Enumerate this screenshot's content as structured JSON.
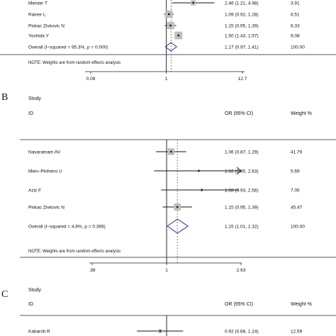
{
  "chart_data": [
    {
      "type": "forest",
      "panel": "",
      "header": {
        "study": "",
        "id": "",
        "or": "",
        "weight": ""
      },
      "studies": [
        {
          "label": "Meister T",
          "or": 2.46,
          "lo": 1.21,
          "hi": 4.98,
          "or_text": "2.46 (1.21, 4.98)",
          "weight": "3.91"
        },
        {
          "label": "Rainer L",
          "or": 1.09,
          "lo": 0.92,
          "hi": 1.28,
          "or_text": "1.09 (0.92, 1.28)",
          "weight": "8.51"
        },
        {
          "label": "Piskac Zivkovic N",
          "or": 1.15,
          "lo": 0.95,
          "hi": 1.39,
          "or_text": "1.15 (0.95, 1.39)",
          "weight": "8.33"
        },
        {
          "label": "Yoshida Y",
          "or": 1.5,
          "lo": 1.43,
          "hi": 1.57,
          "or_text": "1.50 (1.43, 1.57)",
          "weight": "9.08"
        }
      ],
      "overall": {
        "label": "Overall  (I–squared = 95.3%, p = 0.000)",
        "or": 1.17,
        "lo": 0.97,
        "hi": 1.41,
        "or_text": "1.17 (0.97, 1.41)",
        "weight": "100.00"
      },
      "note": "NOTE: Weights are from random effects analysis",
      "axis": {
        "ticks": [
          0.08,
          1,
          12.7
        ],
        "tick_labels": [
          "0.08",
          "1",
          "12.7"
        ],
        "scale": "log"
      }
    },
    {
      "type": "forest",
      "panel": "B",
      "header": {
        "study": "Study",
        "id": "ID",
        "or": "OR (95% CI)",
        "weight": "Weight %"
      },
      "studies": [
        {
          "label": "Navaratnam AV",
          "or": 1.06,
          "lo": 0.87,
          "hi": 1.29,
          "or_text": "1.06 (0.87, 1.29)",
          "weight": "41.79"
        },
        {
          "label": "Meis–Pinheiro U",
          "or": 1.52,
          "lo": 0.85,
          "hi": 2.63,
          "or_text": "1.52 (0.85, 2.63)",
          "weight": "5.69",
          "arrow_right": true
        },
        {
          "label": "Aziz  F",
          "or": 1.58,
          "lo": 0.93,
          "hi": 2.56,
          "or_text": "1.58 (0.93, 2.56)",
          "weight": "7.05"
        },
        {
          "label": "Piskac Zivkovic  N",
          "or": 1.15,
          "lo": 0.95,
          "hi": 1.39,
          "or_text": "1.15 (0.95, 1.39)",
          "weight": "45.47"
        }
      ],
      "overall": {
        "label": "Overall  (I–squared = 4.8%, p = 0.369)",
        "or": 1.15,
        "lo": 1.01,
        "hi": 1.32,
        "or_text": "1.15 (1.01, 1.32)",
        "weight": "100.00"
      },
      "note": "NOTE: Weights are from random effects analysis",
      "axis": {
        "ticks": [
          0.38,
          1,
          2.63
        ],
        "tick_labels": [
          ".38",
          "1",
          "2.63"
        ],
        "scale": "log"
      }
    },
    {
      "type": "forest",
      "panel": "C",
      "header": {
        "study": "Study",
        "id": "ID",
        "or": "OR (95% CI)",
        "weight": "Weight %"
      },
      "studies": [
        {
          "label": "Kabarriti R",
          "or": 0.92,
          "lo": 0.68,
          "hi": 1.24,
          "or_text": "0.92 (0.68, 1.24)",
          "weight": "12.59"
        }
      ]
    }
  ]
}
